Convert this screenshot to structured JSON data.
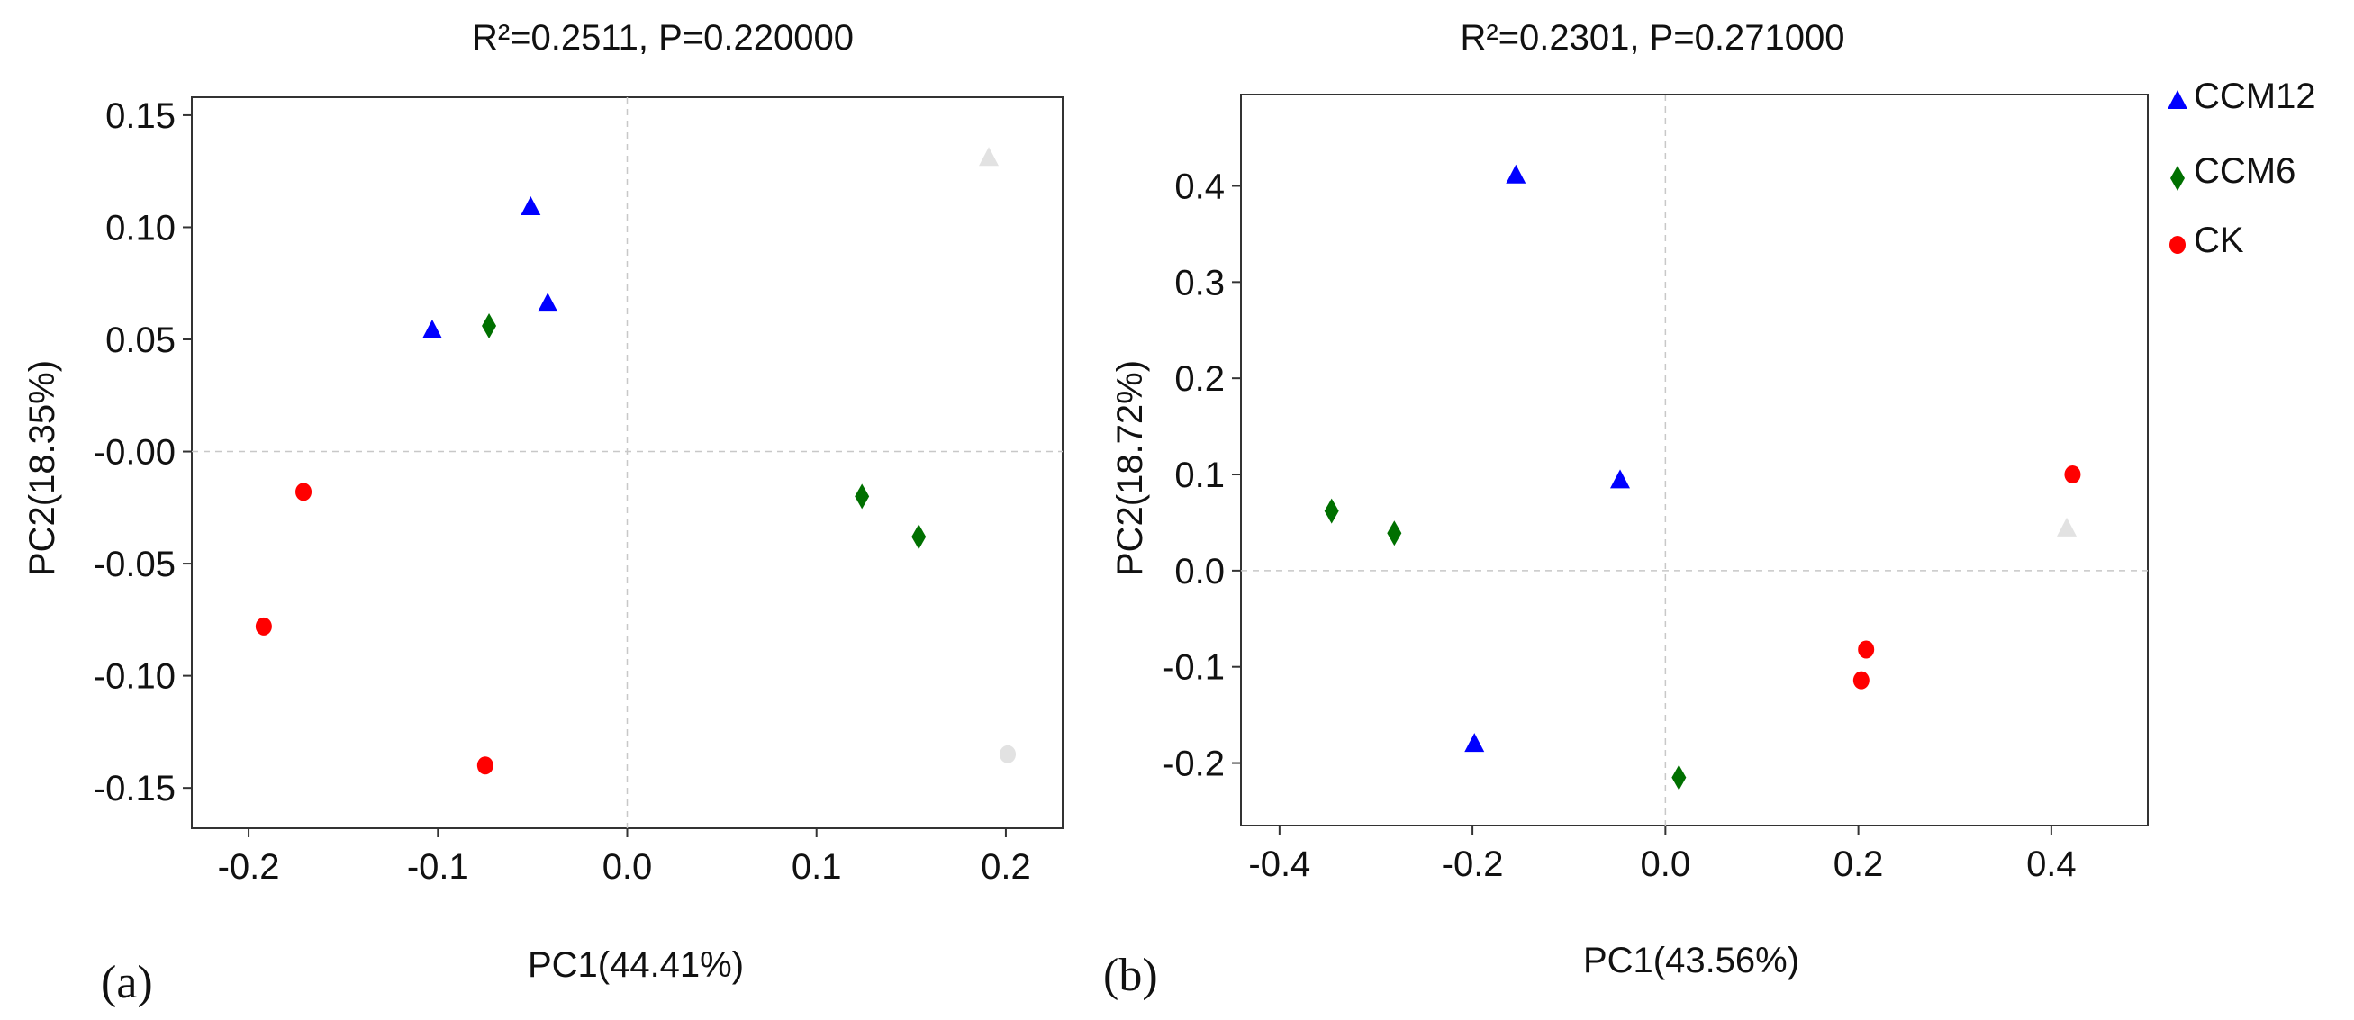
{
  "figure_labels": {
    "a": "(a)",
    "b": "(b)"
  },
  "legend": [
    {
      "name": "CCM12",
      "marker": "triangle",
      "color": "#0000ff"
    },
    {
      "name": "CCM6",
      "marker": "diamond",
      "color": "#007000"
    },
    {
      "name": "CK",
      "marker": "circle",
      "color": "#ff0000"
    }
  ],
  "chart_data": [
    {
      "type": "scatter",
      "title": "R²=0.2511, P=0.220000",
      "xlabel": "PC1(44.41%)",
      "ylabel": "PC2(18.35%)",
      "xlim": [
        -0.23,
        0.23
      ],
      "ylim": [
        -0.168,
        0.158
      ],
      "xticks": [
        -0.2,
        -0.1,
        0.0,
        0.1,
        0.2
      ],
      "xtick_labels": [
        "-0.2",
        "-0.1",
        "0.0",
        "0.1",
        "0.2"
      ],
      "yticks": [
        0.15,
        0.1,
        0.05,
        0.0,
        -0.05,
        -0.1,
        -0.15
      ],
      "ytick_labels": [
        "0.15",
        "0.10",
        "0.05",
        "-0.00",
        "-0.05",
        "-0.10",
        "-0.15"
      ],
      "series": [
        {
          "name": "CCM12",
          "color": "#0000ff",
          "marker": "triangle",
          "x": [
            -0.103,
            -0.051,
            -0.042
          ],
          "y": [
            0.054,
            0.109,
            0.066
          ]
        },
        {
          "name": "CCM6",
          "color": "#007000",
          "marker": "diamond",
          "x": [
            -0.073,
            0.124,
            0.154
          ],
          "y": [
            0.056,
            -0.02,
            -0.038
          ]
        },
        {
          "name": "CK",
          "color": "#ff0000",
          "marker": "circle",
          "x": [
            -0.171,
            -0.192,
            -0.075
          ],
          "y": [
            -0.018,
            -0.078,
            -0.14
          ]
        },
        {
          "name": "faint",
          "color": "#e2e2e2",
          "marker": "triangle",
          "x": [
            0.191
          ],
          "y": [
            0.131
          ]
        },
        {
          "name": "faint",
          "color": "#e2e2e2",
          "marker": "circle",
          "x": [
            0.201
          ],
          "y": [
            -0.135
          ]
        }
      ]
    },
    {
      "type": "scatter",
      "title": "R²=0.2301, P=0.271000",
      "xlabel": "PC1(43.56%)",
      "ylabel": "PC2(18.72%)",
      "xlim": [
        -0.44,
        0.5
      ],
      "ylim": [
        -0.265,
        0.495
      ],
      "xticks": [
        -0.4,
        -0.2,
        0.0,
        0.2,
        0.4
      ],
      "xtick_labels": [
        "-0.4",
        "-0.2",
        "0.0",
        "0.2",
        "0.4"
      ],
      "yticks": [
        0.4,
        0.3,
        0.2,
        0.1,
        0.0,
        -0.1,
        -0.2
      ],
      "ytick_labels": [
        "0.4",
        "0.3",
        "0.2",
        "0.1",
        "0.0",
        "-0.1",
        "-0.2"
      ],
      "series": [
        {
          "name": "CCM12",
          "color": "#0000ff",
          "marker": "triangle",
          "x": [
            -0.155,
            -0.047,
            -0.198
          ],
          "y": [
            0.411,
            0.094,
            -0.18
          ]
        },
        {
          "name": "CCM6",
          "color": "#007000",
          "marker": "diamond",
          "x": [
            -0.346,
            -0.281,
            0.014
          ],
          "y": [
            0.062,
            0.039,
            -0.215
          ]
        },
        {
          "name": "CK",
          "color": "#ff0000",
          "marker": "circle",
          "x": [
            0.422,
            0.208,
            0.203
          ],
          "y": [
            0.1,
            -0.082,
            -0.114
          ]
        },
        {
          "name": "faint",
          "color": "#e2e2e2",
          "marker": "triangle",
          "x": [
            0.416
          ],
          "y": [
            0.044
          ]
        }
      ]
    }
  ]
}
